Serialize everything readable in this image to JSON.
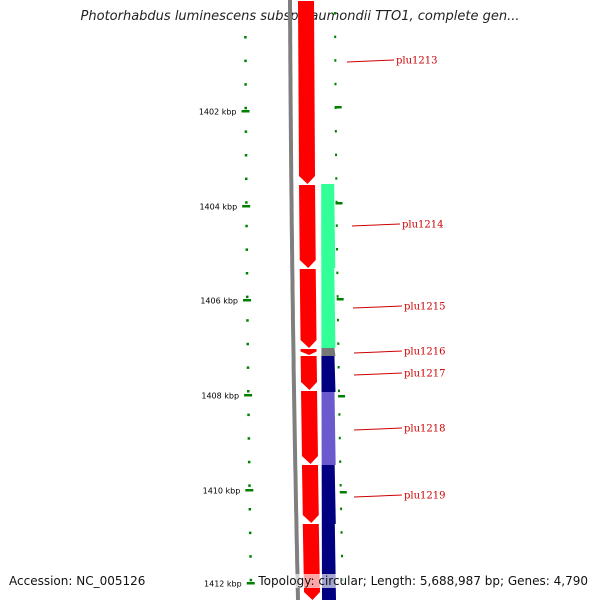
{
  "title": "Photorhabdus luminescens subsp. laumondii TTO1, complete gen...",
  "accession": "Accession: NC_005126",
  "topology": "Topology: circular; Length: 5,688,987 bp; Genes: 4,790",
  "colors": {
    "backbone": "#7f7f7f",
    "forward_strand": "#ff0000",
    "scale_ticks": "#008000",
    "gene_label": "#cc0000",
    "gene_cyan": "#33ff99",
    "gene_gray": "#777777",
    "gene_navy": "#000080",
    "gene_slate": "#6a5acd"
  },
  "scale": {
    "labels": [
      "1402 kbp",
      "1404 kbp",
      "1406 kbp",
      "1408 kbp",
      "1410 kbp",
      "1412 kbp"
    ]
  },
  "genes": [
    {
      "label": "plu1213"
    },
    {
      "label": "plu1214",
      "color": "#33ff99"
    },
    {
      "label": "plu1215",
      "color": "#33ff99"
    },
    {
      "label": "plu1216",
      "color": "#777777"
    },
    {
      "label": "plu1217",
      "color": "#000080"
    },
    {
      "label": "plu1218",
      "color": "#6a5acd"
    },
    {
      "label": "plu1219",
      "color": "#000080"
    }
  ]
}
